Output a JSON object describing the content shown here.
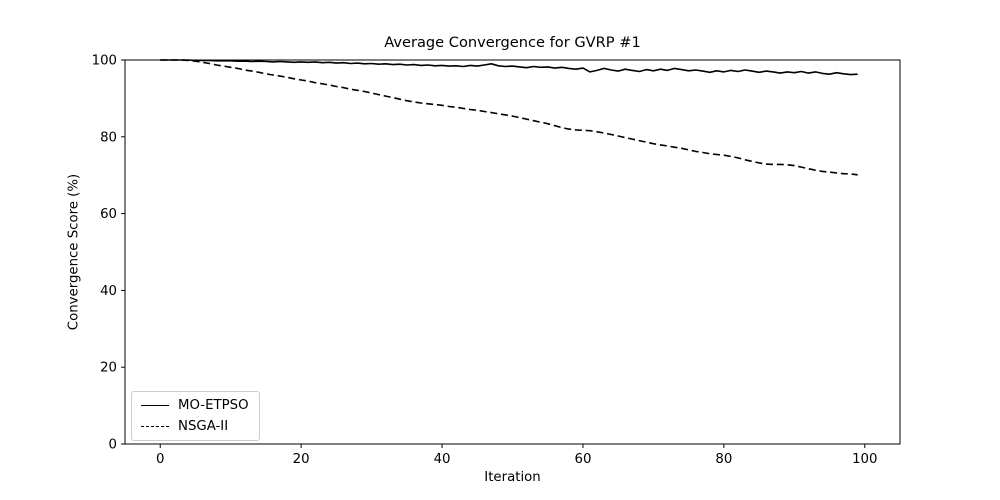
{
  "figure": {
    "background": "#ffffff",
    "line_color": "#000000",
    "legend": {
      "entries": [
        {
          "label": "MO-ETPSO",
          "linestyle": "solid"
        },
        {
          "label": "NSGA-II",
          "linestyle": "dashed"
        }
      ],
      "position": "lower left"
    }
  },
  "chart_data": {
    "type": "line",
    "title": "Average Convergence for GVRP #1",
    "xlabel": "Iteration",
    "ylabel": "Convergence Score (%)",
    "xlim": [
      -5,
      105
    ],
    "ylim": [
      0,
      100
    ],
    "xticks": [
      0,
      20,
      40,
      60,
      80,
      100
    ],
    "yticks": [
      0,
      20,
      40,
      60,
      80,
      100
    ],
    "grid": false,
    "legend_position": "lower left",
    "x": [
      0,
      1,
      2,
      3,
      4,
      5,
      6,
      7,
      8,
      9,
      10,
      11,
      12,
      13,
      14,
      15,
      16,
      17,
      18,
      19,
      20,
      21,
      22,
      23,
      24,
      25,
      26,
      27,
      28,
      29,
      30,
      31,
      32,
      33,
      34,
      35,
      36,
      37,
      38,
      39,
      40,
      41,
      42,
      43,
      44,
      45,
      46,
      47,
      48,
      49,
      50,
      51,
      52,
      53,
      54,
      55,
      56,
      57,
      58,
      59,
      60,
      61,
      62,
      63,
      64,
      65,
      66,
      67,
      68,
      69,
      70,
      71,
      72,
      73,
      74,
      75,
      76,
      77,
      78,
      79,
      80,
      81,
      82,
      83,
      84,
      85,
      86,
      87,
      88,
      89,
      90,
      91,
      92,
      93,
      94,
      95,
      96,
      97,
      98,
      99
    ],
    "series": [
      {
        "name": "MO-ETPSO",
        "color": "#000000",
        "linestyle": "solid",
        "values": [
          100,
          100,
          100,
          100,
          100,
          99.9,
          99.9,
          99.9,
          99.8,
          99.8,
          99.8,
          99.7,
          99.7,
          99.6,
          99.7,
          99.6,
          99.5,
          99.6,
          99.5,
          99.4,
          99.5,
          99.4,
          99.5,
          99.3,
          99.4,
          99.2,
          99.3,
          99.1,
          99.2,
          99.0,
          99.1,
          98.9,
          99.0,
          98.8,
          98.9,
          98.7,
          98.8,
          98.6,
          98.7,
          98.5,
          98.6,
          98.4,
          98.5,
          98.3,
          98.6,
          98.4,
          98.7,
          99.0,
          98.5,
          98.3,
          98.4,
          98.2,
          98.0,
          98.3,
          98.1,
          98.2,
          97.9,
          98.1,
          97.8,
          97.6,
          97.9,
          96.9,
          97.3,
          97.8,
          97.4,
          97.1,
          97.6,
          97.3,
          97.0,
          97.5,
          97.2,
          97.6,
          97.3,
          97.8,
          97.5,
          97.2,
          97.4,
          97.1,
          96.8,
          97.2,
          96.9,
          97.3,
          97.0,
          97.4,
          97.1,
          96.8,
          97.1,
          96.9,
          96.6,
          96.9,
          96.7,
          97.0,
          96.6,
          96.9,
          96.5,
          96.3,
          96.7,
          96.4,
          96.2,
          96.3
        ]
      },
      {
        "name": "NSGA-II",
        "color": "#000000",
        "linestyle": "dashed",
        "values": [
          100,
          100,
          100,
          100,
          99.9,
          99.7,
          99.4,
          99.1,
          98.7,
          98.4,
          98.1,
          97.8,
          97.4,
          97.1,
          96.8,
          96.4,
          96.1,
          95.8,
          95.5,
          95.1,
          94.8,
          94.5,
          94.1,
          93.8,
          93.5,
          93.1,
          92.8,
          92.4,
          92.1,
          91.8,
          91.4,
          91.0,
          90.6,
          90.2,
          89.8,
          89.4,
          89.1,
          88.8,
          88.6,
          88.4,
          88.2,
          87.9,
          87.7,
          87.4,
          87.1,
          86.9,
          86.6,
          86.3,
          86.0,
          85.7,
          85.4,
          85.0,
          84.6,
          84.2,
          83.8,
          83.4,
          82.9,
          82.4,
          82.0,
          81.8,
          81.7,
          81.6,
          81.3,
          81.0,
          80.6,
          80.2,
          79.8,
          79.4,
          79.0,
          78.6,
          78.2,
          77.9,
          77.6,
          77.3,
          77.0,
          76.6,
          76.2,
          75.9,
          75.6,
          75.4,
          75.2,
          74.9,
          74.5,
          74.0,
          73.6,
          73.2,
          72.9,
          72.8,
          72.8,
          72.7,
          72.5,
          72.1,
          71.7,
          71.3,
          71.0,
          70.8,
          70.6,
          70.4,
          70.3,
          70.1
        ]
      }
    ]
  }
}
